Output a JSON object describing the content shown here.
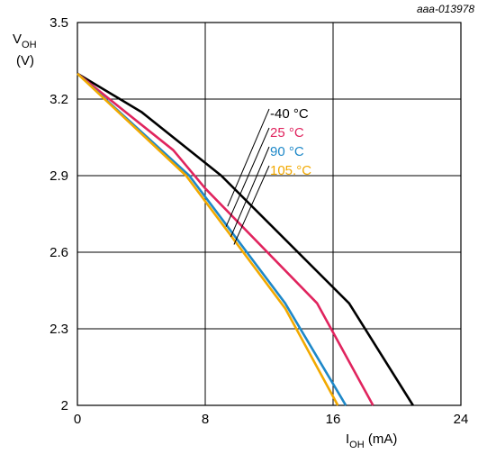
{
  "chart_data": {
    "type": "line",
    "reference": "aaa-013978",
    "ylabel": {
      "main": "V",
      "sub": "OH",
      "unit": "(V)"
    },
    "xlabel": {
      "main": "I",
      "sub": "OH",
      "unit": " (mA)"
    },
    "xlim": [
      0,
      24
    ],
    "ylim": [
      2,
      3.5
    ],
    "x_ticks": [
      0,
      8,
      16,
      24
    ],
    "y_ticks": [
      2,
      2.3,
      2.6,
      2.9,
      3.2,
      3.5
    ],
    "y_tick_labels": [
      "2",
      "2.3",
      "2.6",
      "2.9",
      "3.2",
      "3.5"
    ],
    "grid": true,
    "series": [
      {
        "name": "-40 °C",
        "color": "#000000",
        "points": [
          [
            0,
            3.3
          ],
          [
            4,
            3.15
          ],
          [
            9,
            2.9
          ],
          [
            17,
            2.4
          ],
          [
            21,
            2.0
          ]
        ]
      },
      {
        "name": "25 °C",
        "color": "#e0245e",
        "points": [
          [
            0,
            3.3
          ],
          [
            6,
            3.0
          ],
          [
            8,
            2.85
          ],
          [
            15,
            2.4
          ],
          [
            18.5,
            2.0
          ]
        ]
      },
      {
        "name": "90 °C",
        "color": "#1e88c8",
        "points": [
          [
            0,
            3.3
          ],
          [
            7,
            2.9
          ],
          [
            13,
            2.4
          ],
          [
            16.8,
            2.0
          ]
        ]
      },
      {
        "name": "105.°C",
        "color": "#f2a900",
        "points": [
          [
            0,
            3.3
          ],
          [
            6.8,
            2.9
          ],
          [
            13,
            2.38
          ],
          [
            16.3,
            2.0
          ]
        ]
      }
    ]
  }
}
